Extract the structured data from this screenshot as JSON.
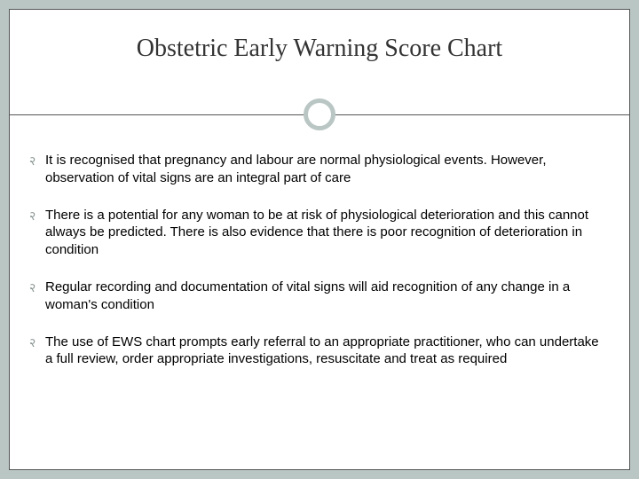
{
  "slide": {
    "title": "Obstetric Early Warning Score Chart",
    "bullets": [
      "It is recognised that pregnancy and labour are normal physiological events.  However, observation of vital signs are an integral part of care",
      "There is a potential for any woman to be at risk of physiological deterioration and this cannot always be predicted. There is also evidence that there is poor recognition of deterioration in condition",
      "Regular recording and documentation of vital signs will aid recognition of any change in a woman's condition",
      "The use of EWS chart prompts early referral to an appropriate practitioner, who can undertake a full review, order appropriate investigations, resuscitate and treat as required"
    ]
  },
  "style": {
    "background_color": "#b9c6c4",
    "inner_background": "#ffffff",
    "border_color": "#555555",
    "title_color": "#333333",
    "title_fontsize": 28,
    "body_fontsize": 15,
    "bullet_marker": "२",
    "bullet_marker_color": "#8a9694",
    "circle_border_color": "#b9c6c4",
    "divider_color": "#555555"
  }
}
